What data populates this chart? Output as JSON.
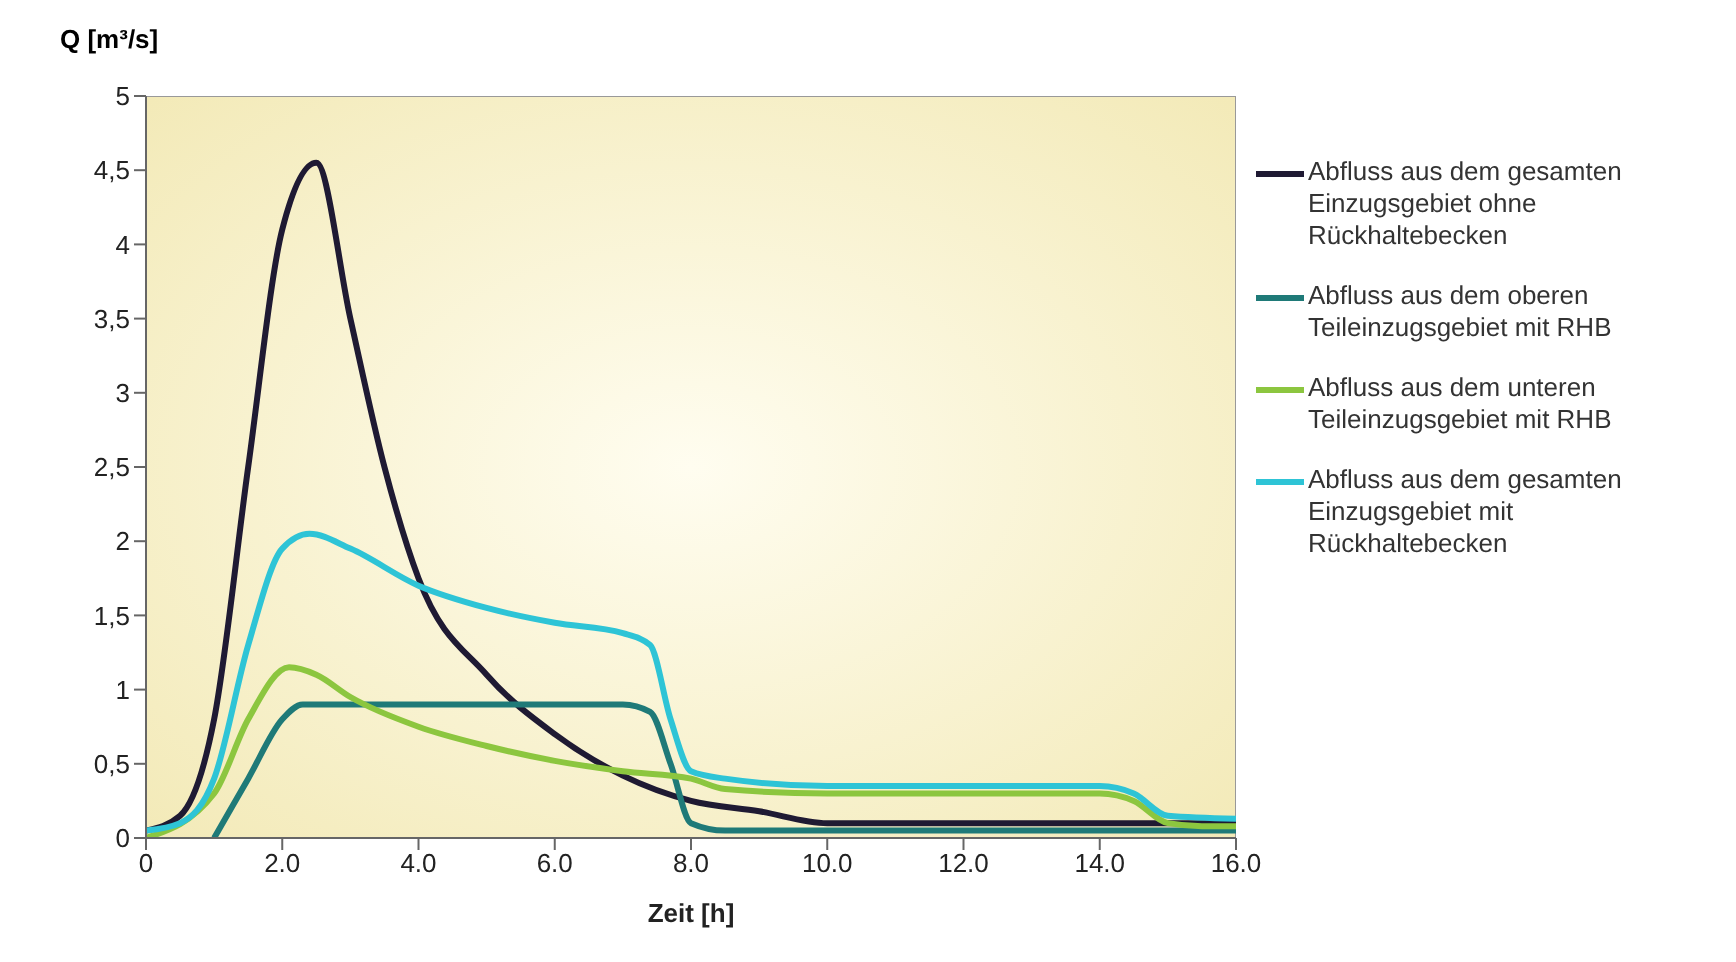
{
  "chart_data": {
    "type": "line",
    "ylabel": "Q [m³/s]",
    "xlabel": "Zeit [h]",
    "legend": "right",
    "grid": false,
    "marker": "none",
    "line_style": "solid",
    "xlim": [
      0,
      16
    ],
    "xticks": [
      0,
      {
        "value": 2,
        "label": "2.0"
      },
      {
        "value": 4,
        "label": "4.0"
      },
      {
        "value": 6,
        "label": "6.0"
      },
      {
        "value": 8,
        "label": "8.0"
      },
      {
        "value": 10,
        "label": "10.0"
      },
      {
        "value": 12,
        "label": "12.0"
      },
      {
        "value": 14,
        "label": "14.0"
      },
      {
        "value": 16,
        "label": "16.0"
      }
    ],
    "ylim": [
      0,
      5
    ],
    "yticks": [
      0,
      {
        "value": 0.5,
        "label": "0,5"
      },
      1,
      {
        "value": 1.5,
        "label": "1,5"
      },
      2,
      {
        "value": 2.5,
        "label": "2,5"
      },
      3,
      {
        "value": 3.5,
        "label": "3,5"
      },
      4,
      {
        "value": 4.5,
        "label": "4,5"
      },
      5
    ],
    "series": [
      {
        "name": "Abfluss aus dem gesamten Einzugsgebiet ohne Rückhaltebecken",
        "color": "#1f1a33",
        "x": [
          0,
          0.5,
          1,
          1.5,
          2,
          2.5,
          3,
          3.5,
          4,
          5,
          6,
          7,
          8,
          9,
          10,
          12,
          14,
          15,
          16
        ],
        "values": [
          0.05,
          0.15,
          0.8,
          2.5,
          4.1,
          4.55,
          3.5,
          2.5,
          1.75,
          1.1,
          0.7,
          0.42,
          0.25,
          0.18,
          0.1,
          0.1,
          0.1,
          0.1,
          0.1
        ]
      },
      {
        "name": "Abfluss aus dem oberen Teileinzugsgebiet mit RHB",
        "color": "#1f7a78",
        "x": [
          1,
          1.5,
          2,
          2.3,
          4,
          7,
          7.4,
          7.7,
          8,
          8.5,
          10,
          16
        ],
        "values": [
          0,
          0.4,
          0.8,
          0.9,
          0.9,
          0.9,
          0.85,
          0.5,
          0.1,
          0.05,
          0.05,
          0.05
        ]
      },
      {
        "name": "Abfluss aus dem unteren Teileinzugsgebiet mit RHB",
        "color": "#8cc63f",
        "x": [
          0,
          1,
          1.5,
          2.1,
          2.5,
          3,
          4,
          5,
          6,
          7,
          8,
          8.5,
          10,
          14,
          14.5,
          15,
          15.5,
          16
        ],
        "values": [
          0,
          0.3,
          0.8,
          1.15,
          1.1,
          0.95,
          0.75,
          0.62,
          0.52,
          0.45,
          0.4,
          0.33,
          0.3,
          0.3,
          0.25,
          0.1,
          0.08,
          0.08
        ]
      },
      {
        "name": "Abfluss aus dem gesamten Einzugsgebiet mit Rückhaltebecken",
        "color": "#2ec4d6",
        "x": [
          0,
          0.5,
          1,
          1.5,
          2,
          2.4,
          3,
          4,
          5,
          6,
          7,
          7.4,
          7.7,
          8,
          8.5,
          10,
          14,
          14.5,
          15,
          16
        ],
        "values": [
          0.05,
          0.1,
          0.4,
          1.3,
          1.95,
          2.05,
          1.95,
          1.7,
          1.55,
          1.45,
          1.38,
          1.3,
          0.8,
          0.45,
          0.4,
          0.35,
          0.35,
          0.3,
          0.15,
          0.13
        ]
      }
    ]
  }
}
